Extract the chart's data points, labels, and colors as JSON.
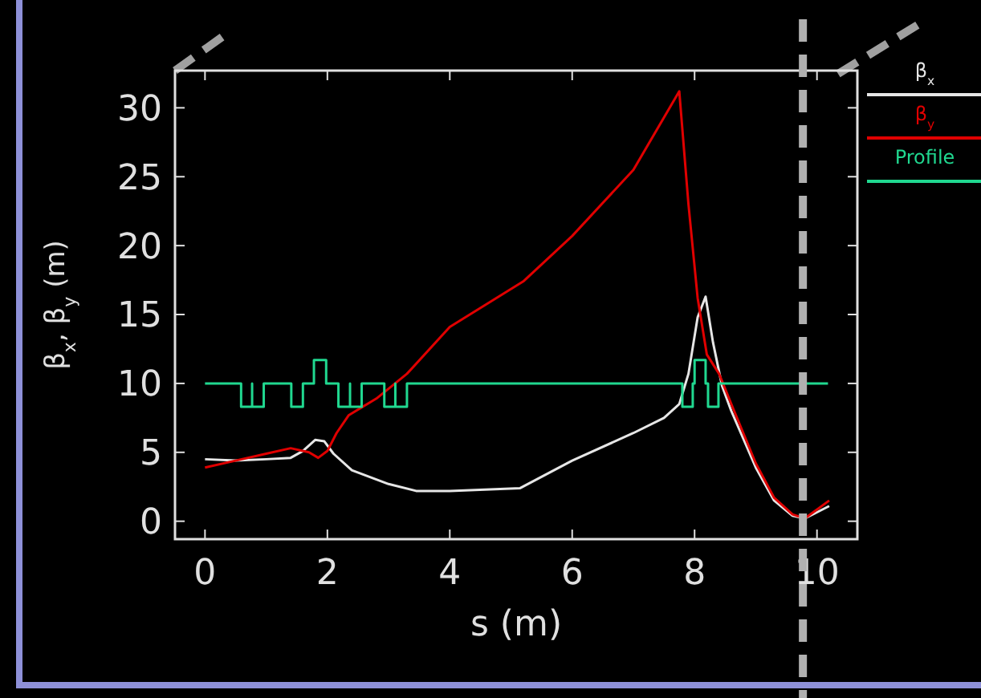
{
  "chart_data": {
    "type": "line",
    "xlabel": "s (m)",
    "ylabel": "β$_{x}$, β$_{y}$ (m)",
    "xlim": [
      -0.49,
      10.66
    ],
    "ylim": [
      -1.3,
      32.7
    ],
    "xticks": [
      0,
      2,
      4,
      6,
      8,
      10
    ],
    "yticks": [
      0,
      5,
      10,
      15,
      20,
      25,
      30
    ],
    "grid": false,
    "legend": "top right",
    "marker": "none",
    "line_style": "solid",
    "series": [
      {
        "name": "β$_{x}$",
        "color": "#e6e6e6",
        "x": [
          0,
          0.5,
          1,
          1.4,
          1.6,
          1.8,
          1.95,
          2.1,
          2.4,
          3,
          3.45,
          4,
          5.15,
          6,
          7,
          7.5,
          7.75,
          7.9,
          8.05,
          8.18,
          8.3,
          8.45,
          8.6,
          9,
          9.3,
          9.6,
          9.8,
          10.2
        ],
        "values": [
          4.5,
          4.4,
          4.5,
          4.6,
          5.1,
          5.9,
          5.8,
          4.9,
          3.7,
          2.7,
          2.2,
          2.2,
          2.4,
          4.4,
          6.4,
          7.5,
          8.5,
          10.7,
          14.8,
          16.3,
          13,
          9.8,
          8,
          3.9,
          1.5,
          0.4,
          0.2,
          1.1
        ]
      },
      {
        "name": "β$_{y}$",
        "color": "#e00000",
        "x": [
          0,
          0.5,
          1,
          1.4,
          1.7,
          1.85,
          2,
          2.15,
          2.35,
          2.8,
          3.3,
          4,
          5.2,
          6,
          7,
          7.75,
          7.9,
          8.05,
          8.2,
          8.4,
          8.6,
          9,
          9.3,
          9.6,
          9.8,
          10.2
        ],
        "values": [
          3.9,
          4.4,
          4.9,
          5.3,
          5,
          4.6,
          5.1,
          6.4,
          7.7,
          8.9,
          10.7,
          14.1,
          17.4,
          20.7,
          25.5,
          31.2,
          23,
          16.2,
          12.1,
          10.7,
          8.5,
          4.2,
          1.7,
          0.5,
          0.2,
          1.5
        ]
      },
      {
        "name": "Profile",
        "type": "step",
        "color": "#20d890",
        "x": [
          0,
          0.59,
          0.59,
          0.77,
          0.77,
          0.77,
          0.96,
          0.96,
          1.41,
          1.41,
          1.6,
          1.6,
          1.78,
          1.78,
          1.98,
          1.98,
          2.18,
          2.18,
          2.37,
          2.37,
          2.37,
          2.56,
          2.56,
          2.93,
          2.93,
          3.11,
          3.11,
          3.11,
          3.3,
          3.3,
          7.8,
          7.8,
          7.97,
          7.97,
          8.0,
          8.0,
          8.18,
          8.18,
          8.22,
          8.22,
          8.39,
          8.39,
          10.18
        ],
        "values": [
          10,
          10,
          8.3,
          8.3,
          10,
          8.3,
          8.3,
          10,
          10,
          8.3,
          8.3,
          10,
          10,
          11.7,
          11.7,
          10,
          10,
          8.3,
          8.3,
          10,
          8.3,
          8.3,
          10,
          10,
          8.3,
          8.3,
          10,
          8.3,
          8.3,
          10,
          10,
          8.3,
          8.3,
          10,
          10,
          11.7,
          11.7,
          10,
          10,
          8.3,
          8.3,
          10,
          10
        ]
      }
    ],
    "ref_lines": [
      {
        "axis": "x",
        "value": 9.77,
        "color": "#b0b0b0",
        "line_style": "dashed"
      }
    ]
  }
}
